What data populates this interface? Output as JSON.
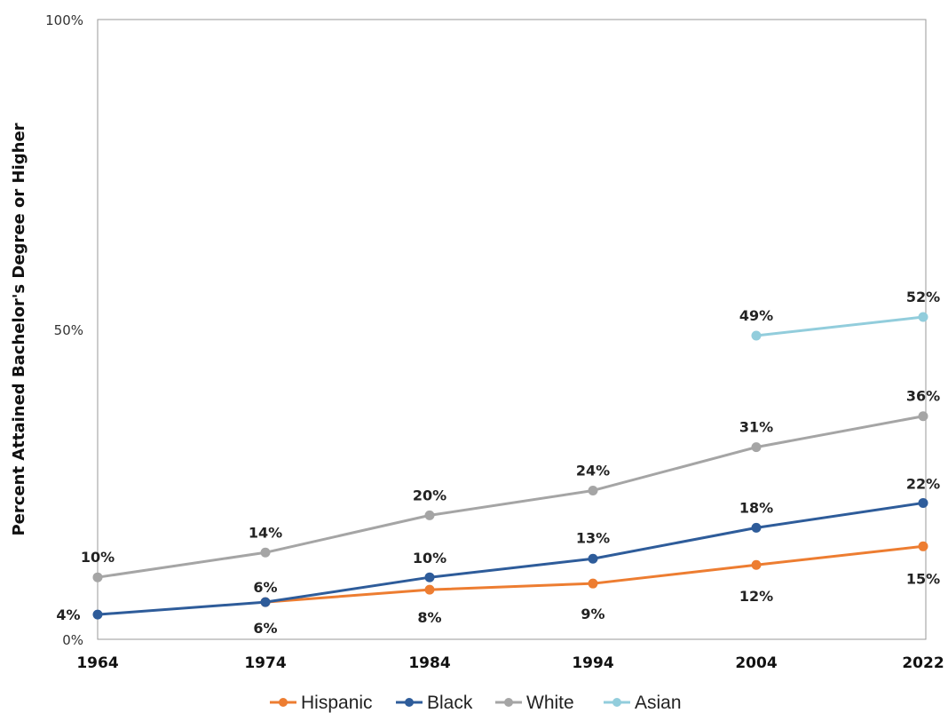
{
  "chart_data": {
    "type": "line",
    "title": "",
    "xlabel": "",
    "ylabel": "Percent Attained Bachelor's Degree or Higher",
    "ylim": [
      0,
      100
    ],
    "yticks": [
      "0%",
      "50%",
      "100%"
    ],
    "categories": [
      "1964",
      "1974",
      "1984",
      "1994",
      "2004",
      "2022"
    ],
    "legend_position": "bottom",
    "grid": false,
    "series": [
      {
        "name": "Hispanic",
        "color": "#ED7D31",
        "values": [
          null,
          6,
          8,
          9,
          12,
          15
        ],
        "labels": [
          null,
          "6%",
          "8%",
          "9%",
          "12%",
          "15%"
        ]
      },
      {
        "name": "Black",
        "color": "#2E5C9A",
        "values": [
          4,
          6,
          10,
          13,
          18,
          22
        ],
        "labels": [
          "4%",
          "6%",
          "10%",
          "13%",
          "18%",
          "22%"
        ]
      },
      {
        "name": "White",
        "color": "#A5A5A5",
        "values": [
          10,
          14,
          20,
          24,
          31,
          36
        ],
        "labels": [
          "10%",
          "14%",
          "20%",
          "24%",
          "31%",
          "36%"
        ]
      },
      {
        "name": "Asian",
        "color": "#92CDDC",
        "values": [
          null,
          null,
          null,
          null,
          49,
          52
        ],
        "labels": [
          null,
          null,
          null,
          null,
          "49%",
          "52%"
        ]
      }
    ]
  }
}
